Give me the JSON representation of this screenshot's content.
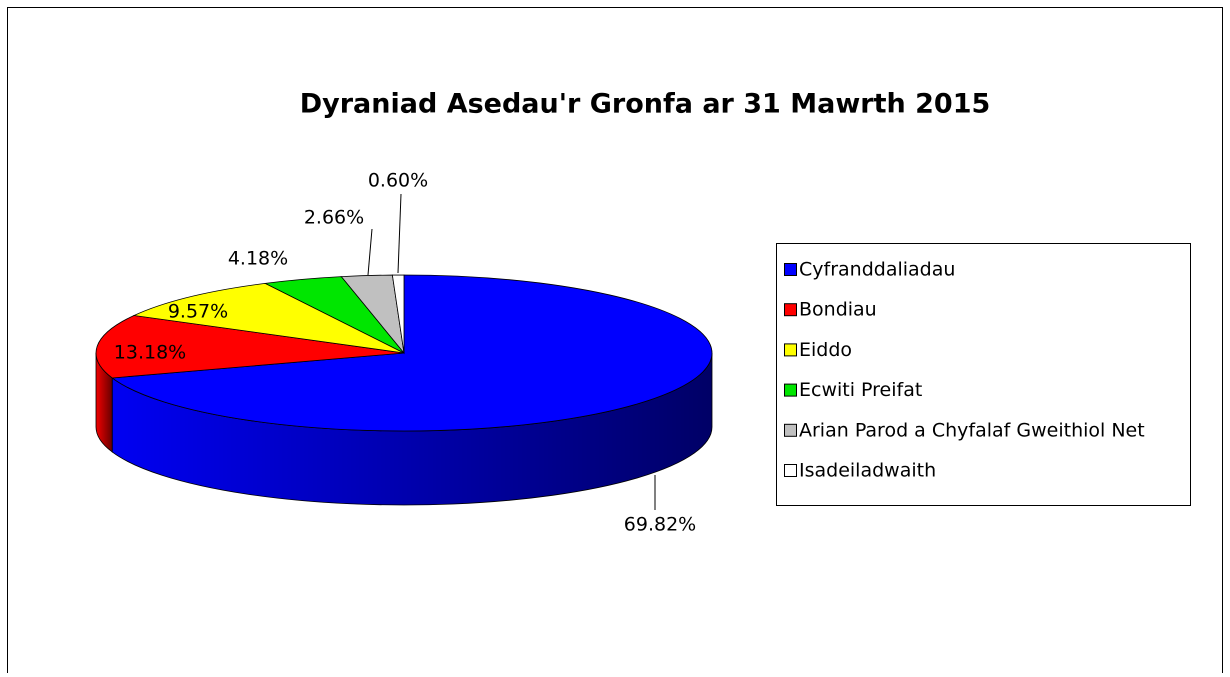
{
  "chart_data": {
    "type": "pie3d",
    "title": "Dyraniad Asedau'r Gronfa ar 31 Mawrth 2015",
    "categories": [
      "Cyfranddaliadau",
      "Bondiau",
      "Eiddo",
      "Ecwiti Preifat",
      "Arian Parod a Chyfalaf Gweithiol Net",
      "Isadeiladwaith"
    ],
    "values": [
      69.82,
      13.18,
      9.57,
      4.18,
      2.66,
      0.6
    ],
    "value_labels": [
      "69.82%",
      "13.18%",
      "9.57%",
      "4.18%",
      "2.66%",
      "0.60%"
    ],
    "colors": [
      "#0000ff",
      "#ff0000",
      "#ffff00",
      "#00e600",
      "#c0c0c0",
      "#ffffff"
    ],
    "legend": "right"
  }
}
